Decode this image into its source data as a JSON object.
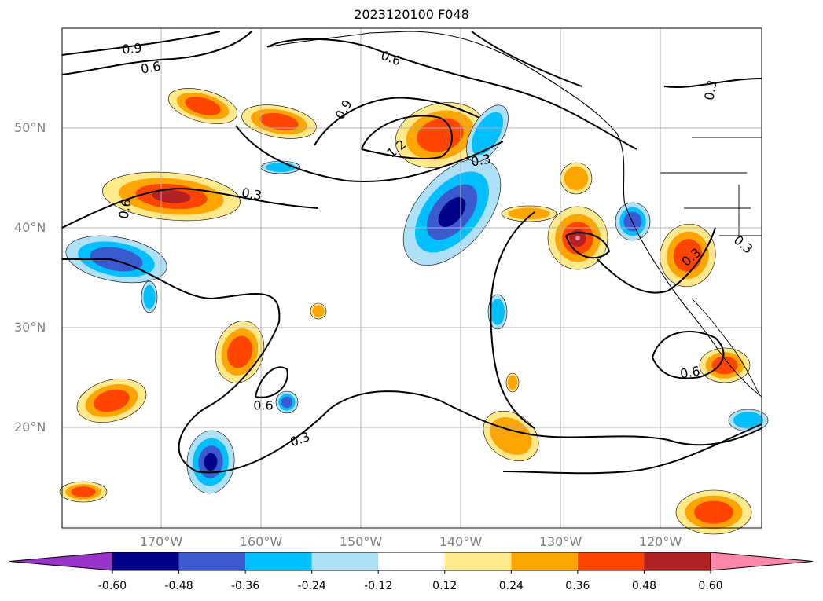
{
  "title": "2023120100 F048",
  "map": {
    "lat_labels": [
      {
        "text": "50°N",
        "lat": 50
      },
      {
        "text": "40°N",
        "lat": 40
      },
      {
        "text": "30°N",
        "lat": 30
      },
      {
        "text": "20°N",
        "lat": 20
      }
    ],
    "lon_labels": [
      {
        "text": "170°W",
        "lon": -170
      },
      {
        "text": "160°W",
        "lon": -160
      },
      {
        "text": "150°W",
        "lon": -150
      },
      {
        "text": "140°W",
        "lon": -140
      },
      {
        "text": "130°W",
        "lon": -130
      },
      {
        "text": "120°W",
        "lon": -120
      }
    ],
    "contour_labels": [
      "0.9",
      "0.6",
      "0.6",
      "0.9",
      "1.2",
      "0.3",
      "0.6",
      "0.3",
      "0.3",
      "0.6",
      "0.3",
      "0.6",
      "0.3",
      "0.3"
    ]
  },
  "colorbar": {
    "colors": [
      "#9933cc",
      "#00008b",
      "#3a5bcf",
      "#00bfff",
      "#aee0f7",
      "#ffffff",
      "#ffe98a",
      "#ffa500",
      "#ff4500",
      "#b22222",
      "#ff88aa"
    ],
    "tick_labels": [
      "-0.60",
      "-0.48",
      "-0.36",
      "-0.24",
      "-0.12",
      "0.12",
      "0.24",
      "0.36",
      "0.48",
      "0.60"
    ]
  }
}
